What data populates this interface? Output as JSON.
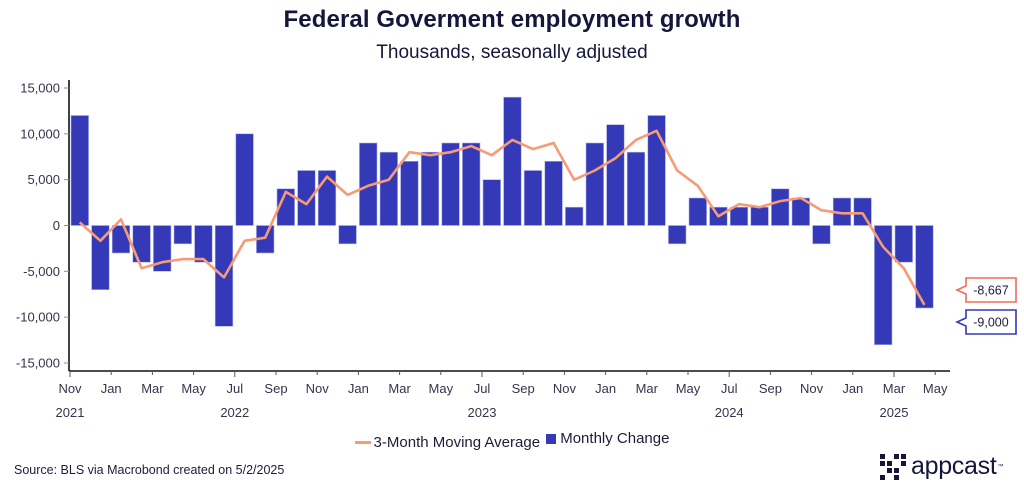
{
  "chart_data": {
    "type": "bar",
    "title": "Federal Goverment employment growth",
    "subtitle": "Thousands, seasonally adjusted",
    "xlabel": "",
    "ylabel": "",
    "ylim": [
      -15000,
      15000
    ],
    "yticks": [
      15000,
      10000,
      5000,
      0,
      -5000,
      -10000,
      -15000
    ],
    "ytick_labels": [
      "15,000",
      "10,000",
      "5,000",
      "0",
      "-5,000",
      "-10,000",
      "-15,000"
    ],
    "grid": false,
    "x_tick_months": [
      "Nov",
      "Jan",
      "Mar",
      "May",
      "Jul",
      "Sep",
      "Nov",
      "Jan",
      "Mar",
      "May",
      "Jul",
      "Sep",
      "Nov",
      "Jan",
      "Mar",
      "May",
      "Jul",
      "Sep",
      "Nov",
      "Jan",
      "Mar",
      "May"
    ],
    "x_tick_years": [
      {
        "label": "2021",
        "tick_index": 0
      },
      {
        "label": "2022",
        "tick_index": 4
      },
      {
        "label": "2023",
        "tick_index": 10
      },
      {
        "label": "2024",
        "tick_index": 16
      },
      {
        "label": "2025",
        "tick_index": 20
      }
    ],
    "categories": [
      "2021-11",
      "2021-12",
      "2022-01",
      "2022-02",
      "2022-03",
      "2022-04",
      "2022-05",
      "2022-06",
      "2022-07",
      "2022-08",
      "2022-09",
      "2022-10",
      "2022-11",
      "2022-12",
      "2023-01",
      "2023-02",
      "2023-03",
      "2023-04",
      "2023-05",
      "2023-06",
      "2023-07",
      "2023-08",
      "2023-09",
      "2023-10",
      "2023-11",
      "2023-12",
      "2024-01",
      "2024-02",
      "2024-03",
      "2024-04",
      "2024-05",
      "2024-06",
      "2024-07",
      "2024-08",
      "2024-09",
      "2024-10",
      "2024-11",
      "2024-12",
      "2025-01",
      "2025-02",
      "2025-03",
      "2025-04"
    ],
    "series": [
      {
        "name": "3-Month Moving Average",
        "type": "line",
        "color": "#f79a76",
        "values": [
          333,
          -1667,
          667,
          -4667,
          -4000,
          -3667,
          -3667,
          -5667,
          -1667,
          -1333,
          3667,
          2333,
          5333,
          3333,
          4333,
          5000,
          8000,
          7667,
          8000,
          8667,
          7667,
          9333,
          8333,
          9000,
          5000,
          6000,
          7333,
          9333,
          10333,
          6000,
          4333,
          1000,
          2333,
          2000,
          2667,
          3000,
          1667,
          1333,
          1333,
          -2333,
          -4667,
          -8667
        ],
        "last_label": "-8,667"
      },
      {
        "name": "Monthly Change",
        "type": "bar",
        "color": "#3439b8",
        "values": [
          12000,
          -7000,
          -3000,
          -4000,
          -5000,
          -2000,
          -4000,
          -11000,
          10000,
          -3000,
          4000,
          6000,
          6000,
          -2000,
          9000,
          8000,
          7000,
          8000,
          9000,
          9000,
          5000,
          14000,
          6000,
          7000,
          2000,
          9000,
          11000,
          8000,
          12000,
          -2000,
          3000,
          2000,
          2000,
          2000,
          4000,
          3000,
          -2000,
          3000,
          3000,
          -13000,
          -4000,
          -9000
        ],
        "last_label": "-9,000"
      }
    ],
    "legend": {
      "placement": "bottom-center",
      "items": [
        "3-Month Moving Average",
        "Monthly Change"
      ]
    }
  },
  "footer": {
    "source": "Source: BLS via Macrobond created on 5/2/2025",
    "logo_text": "appcast",
    "logo_tm": "™"
  }
}
